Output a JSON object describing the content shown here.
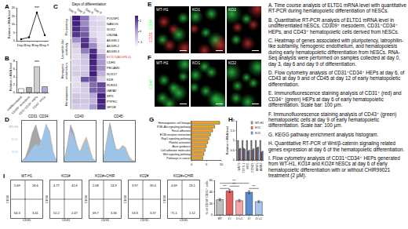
{
  "chart_data": [
    {
      "panel": "A",
      "type": "line",
      "categories": [
        "Day 0",
        "Day 3",
        "Day 6",
        "Day 9"
      ],
      "values": [
        1,
        2.1,
        17.2,
        3.4
      ],
      "color": "#000000",
      "marker": "circle",
      "ylabel": "Relative mRNA level",
      "ylim": [
        0,
        20
      ],
      "yticks": [
        0,
        5,
        10,
        15,
        20
      ],
      "annotations": [
        {
          "category": "Day 6",
          "text": "***"
        }
      ]
    },
    {
      "panel": "B",
      "type": "bar",
      "categories": [
        "Undifferentiated",
        "CD309⁺ mesoderm",
        "CD31⁺CD34⁺ HEPs",
        "CD43⁺ HPCs"
      ],
      "values": [
        1,
        1.3,
        6.6,
        1.5
      ],
      "colors": [
        "#ffffff",
        "#a6a6a6",
        "#d0cece",
        "#b4a7d6"
      ],
      "ylabel": "Relative mRNA level",
      "ylim": [
        0,
        8
      ],
      "yticks": [
        0,
        2,
        4,
        6,
        8
      ],
      "annotations": [
        {
          "category": "CD31⁺CD34⁺ HEPs",
          "text": "***"
        }
      ]
    },
    {
      "panel": "C",
      "type": "heatmap",
      "title": "Days of differentiation",
      "columns": [
        "Day 0",
        "Day 3",
        "Day 6",
        "Day 9"
      ],
      "row_groups": [
        {
          "name": "Pluripotency",
          "rows": [
            {
              "name": "POU5F1",
              "values": [
                1.45,
                0.5,
                -0.9,
                -1.05
              ]
            },
            {
              "name": "NANOG",
              "values": [
                1.4,
                0.3,
                -0.8,
                -0.9
              ]
            },
            {
              "name": "SOX2",
              "values": [
                1.3,
                0.6,
                -0.9,
                -1.0
              ]
            },
            {
              "name": "LIN28A",
              "values": [
                1.2,
                0.8,
                -0.9,
                -1.1
              ]
            }
          ]
        },
        {
          "name": "Latrophilin-like\nsubfamily",
          "rows": [
            {
              "name": "ADGRL1",
              "values": [
                0.2,
                1.2,
                -0.3,
                -1.1
              ]
            },
            {
              "name": "ADGRL2",
              "values": [
                -0.6,
                1.3,
                0.3,
                -1.0
              ]
            },
            {
              "name": "ADGRL3",
              "values": [
                -0.9,
                0.4,
                1.3,
                -0.8
              ]
            },
            {
              "name": "ELTD1(ADGRL4)",
              "values": [
                -1.0,
                -0.5,
                1.4,
                0.1
              ],
              "color": "#e03030"
            }
          ]
        },
        {
          "name": "Hemogenic\nendothelium",
          "rows": [
            {
              "name": "CDH5",
              "values": [
                -0.9,
                -0.6,
                1.4,
                0.1
              ]
            },
            {
              "name": "PECAM1",
              "values": [
                -0.8,
                -0.7,
                1.3,
                0.2
              ]
            },
            {
              "name": "SOX17",
              "values": [
                -0.7,
                -0.5,
                1.45,
                -0.25
              ]
            },
            {
              "name": "KDR",
              "values": [
                -1.0,
                0.9,
                0.9,
                -0.8
              ]
            }
          ]
        },
        {
          "name": "Hematopoiesis",
          "rows": [
            {
              "name": "RUNX1",
              "values": [
                -1.0,
                -0.6,
                0.6,
                1.0
              ]
            },
            {
              "name": "GATA2",
              "values": [
                -0.9,
                -0.7,
                0.7,
                0.9
              ]
            },
            {
              "name": "SPI1",
              "values": [
                -0.6,
                -0.7,
                -0.1,
                1.4
              ]
            },
            {
              "name": "PTPRC",
              "values": [
                -0.5,
                -0.6,
                -0.3,
                1.4
              ]
            },
            {
              "name": "GFI1B",
              "values": [
                -0.7,
                -0.7,
                0.1,
                1.3
              ]
            }
          ]
        }
      ],
      "zlim": [
        -1.5,
        1.5
      ],
      "zticks": [
        -1,
        0,
        1
      ]
    },
    {
      "panel": "D",
      "type": "area",
      "title": "CD31⁺CD34⁺",
      "x": [
        0,
        1,
        2,
        3,
        4,
        5,
        6,
        7,
        8,
        9,
        10
      ],
      "xlim": [
        0,
        10
      ],
      "ylim": [
        0,
        1
      ],
      "tick_labels": false,
      "series": [
        {
          "name": "WT-H1",
          "color": "#a6a6a6",
          "values": [
            0.02,
            0.1,
            0.35,
            0.7,
            0.9,
            0.6,
            0.4,
            0.45,
            0.35,
            0.12,
            0.02
          ]
        },
        {
          "name": "KO1",
          "color": "#f4b183",
          "values": [
            0.02,
            0.05,
            0.15,
            0.3,
            0.4,
            0.35,
            0.55,
            0.9,
            0.75,
            0.25,
            0.03
          ]
        },
        {
          "name": "KO2",
          "color": "#9dc3e6",
          "values": [
            0.02,
            0.06,
            0.18,
            0.32,
            0.42,
            0.38,
            0.6,
            0.92,
            0.7,
            0.22,
            0.03
          ]
        }
      ]
    },
    {
      "type": "area",
      "title": "CD43⁺",
      "x": [
        0,
        1,
        2,
        3,
        4,
        5,
        6,
        7,
        8,
        9,
        10
      ],
      "xlim": [
        0,
        10
      ],
      "ylim": [
        0,
        1
      ],
      "tick_labels": false,
      "series": [
        {
          "color": "#a6a6a6",
          "values": [
            0.05,
            0.4,
            0.9,
            0.7,
            0.4,
            0.2,
            0.25,
            0.3,
            0.2,
            0.06,
            0.01
          ]
        },
        {
          "color": "#f4b183",
          "values": [
            0.05,
            0.3,
            0.7,
            0.55,
            0.35,
            0.25,
            0.45,
            0.6,
            0.35,
            0.08,
            0.01
          ]
        },
        {
          "color": "#9dc3e6",
          "values": [
            0.05,
            0.32,
            0.75,
            0.6,
            0.35,
            0.22,
            0.4,
            0.55,
            0.3,
            0.07,
            0.01
          ]
        }
      ]
    },
    {
      "type": "area",
      "title": "CD45⁺",
      "x": [
        0,
        1,
        2,
        3,
        4,
        5,
        6,
        7,
        8,
        9,
        10
      ],
      "xlim": [
        0,
        10
      ],
      "ylim": [
        0,
        1
      ],
      "tick_labels": false,
      "series": [
        {
          "color": "#a6a6a6",
          "values": [
            0.05,
            0.5,
            0.95,
            0.6,
            0.3,
            0.2,
            0.22,
            0.2,
            0.1,
            0.03,
            0.01
          ]
        },
        {
          "color": "#f4b183",
          "values": [
            0.05,
            0.4,
            0.8,
            0.5,
            0.3,
            0.3,
            0.4,
            0.35,
            0.15,
            0.04,
            0.01
          ]
        },
        {
          "color": "#9dc3e6",
          "values": [
            0.05,
            0.42,
            0.82,
            0.52,
            0.3,
            0.28,
            0.38,
            0.3,
            0.12,
            0.03,
            0.01
          ]
        }
      ]
    },
    {
      "panel": "G",
      "type": "bar",
      "orientation": "horizontal",
      "categories": [
        "Hematopoietic cell lineage",
        "PI3K-Akt signaling pathway",
        "Focal adhesion",
        "ECM-receptor interaction",
        "Rap1 signaling pathway",
        "Platelet activation",
        "Axon guidance",
        "Cell adhesion molecules",
        "Wnt signaling pathway",
        "Pathways in cancer"
      ],
      "values": [
        9.5,
        7.8,
        7.1,
        6.4,
        5.9,
        5.5,
        5.0,
        4.6,
        4.2,
        3.8
      ],
      "color": "#f5a623",
      "xlim": [
        0,
        10
      ],
      "xticks": [
        0,
        5,
        10
      ]
    },
    {
      "panel": "H",
      "type": "bar",
      "categories": [
        "WNT3",
        "TCF7L1",
        "MYC",
        "CCND1",
        "BIRC5",
        "AXIN2"
      ],
      "legend": "top right",
      "ylabel": "Relative mRNA level",
      "ylim": [
        0,
        2
      ],
      "yticks": [
        0,
        0.5,
        1,
        1.5,
        2
      ],
      "series": [
        {
          "name": "WT-H1",
          "color": "#8c8c8c",
          "values": [
            1,
            1,
            1,
            1,
            1,
            1
          ]
        },
        {
          "name": "KO1",
          "color": "#e06060",
          "values": [
            0.55,
            0.6,
            0.45,
            0.5,
            0.62,
            0.4
          ]
        },
        {
          "name": "KO2",
          "color": "#5b8fd0",
          "values": [
            0.6,
            0.55,
            0.5,
            0.58,
            0.66,
            0.45
          ]
        }
      ]
    },
    {
      "panel": "I",
      "type": "quadrant",
      "title": "WT-H1",
      "xlabel": "CD31",
      "ylabel": "CD34",
      "xlim": [
        0,
        1
      ],
      "ylim": [
        0,
        1
      ],
      "tick_labels": false,
      "gate": [
        0.45,
        0.5
      ],
      "quadrants": [
        5.69,
        26.6,
        64.3,
        3.41
      ]
    },
    {
      "type": "quadrant",
      "title": "KO1#",
      "xlabel": "CD31",
      "ylabel": "CD34",
      "xlim": [
        0,
        1
      ],
      "ylim": [
        0,
        1
      ],
      "tick_labels": false,
      "gate": [
        0.45,
        0.5
      ],
      "quadrants": [
        4.77,
        41.6,
        51.2,
        2.47
      ]
    },
    {
      "type": "quadrant",
      "title": "KO1#+CHIR",
      "xlabel": "CD31",
      "ylabel": "CD34",
      "xlim": [
        0,
        1
      ],
      "ylim": [
        0,
        1
      ],
      "tick_labels": false,
      "gate": [
        0.45,
        0.5
      ],
      "quadrants": [
        2.08,
        24.9,
        69.7,
        3.36
      ]
    },
    {
      "type": "quadrant",
      "title": "KO2#",
      "xlabel": "CD31",
      "ylabel": "CD34",
      "xlim": [
        0,
        1
      ],
      "ylim": [
        0,
        1
      ],
      "tick_labels": false,
      "gate": [
        0.45,
        0.5
      ],
      "quadrants": [
        3.97,
        39.4,
        53.3,
        3.37
      ]
    },
    {
      "type": "quadrant",
      "title": "KO2#+CHIR",
      "xlabel": "CD31",
      "ylabel": "CD34",
      "xlim": [
        0,
        1
      ],
      "ylim": [
        0,
        1
      ],
      "tick_labels": false,
      "gate": [
        0.45,
        0.5
      ],
      "quadrants": [
        4.69,
        23.1,
        71.1,
        1.12
      ]
    },
    {
      "type": "bar",
      "categories": [
        "WT",
        "1#",
        "1#+C",
        "2#",
        "2#+C"
      ],
      "values": [
        26.6,
        41.6,
        24.9,
        39.4,
        23.1
      ],
      "errors": [
        1.8,
        2.6,
        1.9,
        2.4,
        1.6
      ],
      "colors": [
        "#bfbfbf",
        "#e06060",
        "#f4a6a6",
        "#5b8fd0",
        "#a9c6ee"
      ],
      "ylabel": "% of CD34⁺CD31⁺ cells",
      "ylim": [
        0,
        60
      ],
      "yticks": [
        0,
        20,
        40,
        60
      ],
      "comparisons": [
        {
          "categories": [
            "WT",
            "1#"
          ],
          "y": 46,
          "text": "***"
        },
        {
          "categories": [
            "1#",
            "1#+C"
          ],
          "y": 50,
          "text": "***"
        },
        {
          "categories": [
            "2#",
            "2#+C"
          ],
          "y": 46,
          "text": "***"
        },
        {
          "categories": [
            "WT",
            "2#"
          ],
          "y": 55,
          "text": "***"
        }
      ]
    }
  ],
  "images": [
    {
      "panel": "E",
      "channels": [
        {
          "name": "CD31",
          "color": "#ff3b3b"
        },
        {
          "name": "CD34",
          "color": "#3bff5a"
        }
      ],
      "samples": [
        "WT-H1",
        "KO1",
        "KO2"
      ]
    },
    {
      "panel": "F",
      "channels": [
        {
          "name": "CD43",
          "color": "#3bff5a"
        }
      ],
      "samples": [
        "WT-H1",
        "KO1",
        "KO2"
      ]
    }
  ],
  "figure_legend": [
    "A. Time course analysis of ELTD1 mRNA level with quantitative RT-PCR during hematopoietic differentiation of hESCs.",
    "B. Quantitative RT-PCR analysis of ELTD1 mRNA level in undifferentiated hESCs, CD309⁺ mesoderm, CD31⁺CD34⁺ HEPs, and CD43⁺ hematopoietic cells derived from hESCs.",
    "C. Heatmap of genes associated with pluripotency, latrophilin-like subfamily, hemogenic endothelium, and hematopoiesis during early hematopoietic differentiation from hESCs. RNA-Seq analysis were performed on samples collected at day 0, day 3, day 6 and day 9 of differentiation.",
    "D. Flow cytometry analysis of CD31⁺CD34⁺ HEPs at day 6, of CD43 at day 9 and of CD45 at day 12 of early hematopoietic differentiation.",
    "E. Immunofluorescence staining analysis of CD31⁺ (red) and CD34⁺ (green) HEPs at day 6 of early hematopoietic differentiation. Scale bar: 100 μm.",
    "F. Immunofluorescence staining analysis of CD43⁺ (green) hematopoietic cells at day 9 of early hematopoietic differentiation. Scale bar: 100 μm.",
    "G. KEGG pathway enrichment analysis histogram.",
    "H. Quantitative RT-PCR of Wnt/β-catenin signaling related genes expression at day 6 of the hematopoietic differentiation.",
    "I. Flow cytometry analysis of CD31⁺CD34⁺ HEPs generated from WT-H1, KO1# and KO2# hESCs at day 6 of early hematopoietic differentiation with or without CHIR99021 treatment (2 μM)."
  ]
}
